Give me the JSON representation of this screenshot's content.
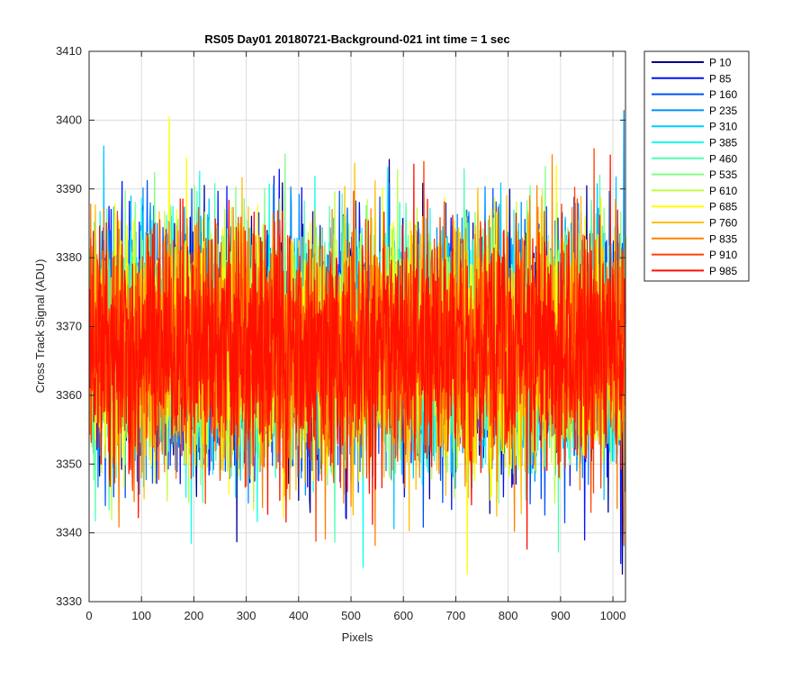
{
  "chart_data": {
    "type": "line",
    "title": "RS05 Day01 20180721-Background-021 int time = 1 sec",
    "xlabel": "Pixels",
    "ylabel": "Cross Track Signal (ADU)",
    "xlim": [
      0,
      1024
    ],
    "ylim": [
      3330,
      3410
    ],
    "xticks": [
      0,
      100,
      200,
      300,
      400,
      500,
      600,
      700,
      800,
      900,
      1000
    ],
    "yticks": [
      3330,
      3340,
      3350,
      3360,
      3370,
      3380,
      3390,
      3400,
      3410
    ],
    "grid": true,
    "legend_position": "outside-top-right",
    "noise_model": {
      "mean": 3367,
      "std": 8.5,
      "points_per_series": 1024
    },
    "series": [
      {
        "name": "P 10",
        "color": "#00008f"
      },
      {
        "name": "P 85",
        "color": "#0010ff"
      },
      {
        "name": "P 160",
        "color": "#0050ff"
      },
      {
        "name": "P 235",
        "color": "#0090ff"
      },
      {
        "name": "P 310",
        "color": "#00c8ff"
      },
      {
        "name": "P 385",
        "color": "#10ffef"
      },
      {
        "name": "P 460",
        "color": "#50ffaf"
      },
      {
        "name": "P 535",
        "color": "#80ff80"
      },
      {
        "name": "P 610",
        "color": "#c0ff40"
      },
      {
        "name": "P 685",
        "color": "#ffff00"
      },
      {
        "name": "P 760",
        "color": "#ffc000"
      },
      {
        "name": "P 835",
        "color": "#ff8000"
      },
      {
        "name": "P 910",
        "color": "#ff4000"
      },
      {
        "name": "P 985",
        "color": "#ff1000"
      }
    ]
  }
}
